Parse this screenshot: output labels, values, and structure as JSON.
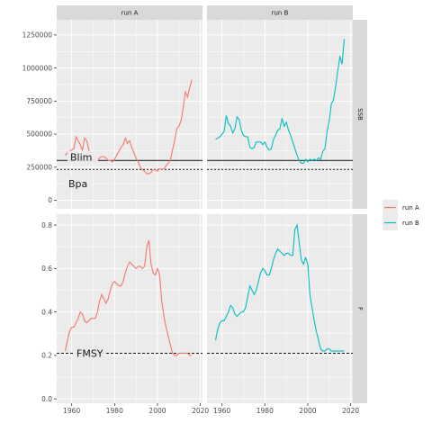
{
  "chart_data": {
    "type": "line",
    "facets": {
      "columns": [
        "run A",
        "run B"
      ],
      "rows": [
        "SSB",
        "F"
      ]
    },
    "x": {
      "ticks": [
        1960,
        1980,
        2000,
        2020
      ],
      "tick_labels": [
        "1960",
        "1980",
        "2000",
        "2020"
      ],
      "range": [
        1953,
        2021
      ]
    },
    "y_ssb": {
      "ticks": [
        0,
        250000,
        500000,
        750000,
        1000000,
        1250000
      ],
      "tick_labels": [
        "0",
        "250000",
        "500000",
        "750000",
        "1000000",
        "1250000"
      ],
      "range": [
        -65000,
        1365000
      ]
    },
    "y_f": {
      "ticks": [
        0.0,
        0.2,
        0.4,
        0.6,
        0.8
      ],
      "tick_labels": [
        "0.0",
        "0.2",
        "0.4",
        "0.6",
        "0.8"
      ],
      "range": [
        -0.02,
        0.85
      ]
    },
    "ref_lines": {
      "Blim": 300000,
      "Bpa": 232000,
      "FMSY": 0.21
    },
    "ref_labels": {
      "blim": "Blim",
      "bpa": "Bpa",
      "fmsy": "FMSY"
    },
    "legend": {
      "position": "right",
      "items": [
        "run A",
        "run B"
      ]
    },
    "colors": {
      "run A": "#F8766D",
      "run B": "#00BFC4",
      "panel_bg": "#EBEBEB",
      "strip_bg": "#D9D9D9",
      "grid": "#FFFFFF",
      "ref_line": "#404040"
    },
    "series": [
      {
        "name": "run A",
        "ssb": {
          "years": [
            1957,
            1958,
            1959,
            1960,
            1961,
            1962,
            1963,
            1964,
            1965,
            1966,
            1967,
            1968,
            1969,
            1970,
            1971,
            1972,
            1973,
            1974,
            1975,
            1976,
            1977,
            1978,
            1979,
            1980,
            1981,
            1982,
            1983,
            1984,
            1985,
            1986,
            1987,
            1988,
            1989,
            1990,
            1991,
            1992,
            1993,
            1994,
            1995,
            1996,
            1997,
            1998,
            1999,
            2000,
            2001,
            2002,
            2003,
            2004,
            2005,
            2006,
            2007,
            2008,
            2009,
            2010,
            2011,
            2012,
            2013,
            2014,
            2015,
            2016
          ],
          "values": [
            340000,
            360000,
            370000,
            380000,
            390000,
            480000,
            450000,
            420000,
            380000,
            470000,
            450000,
            380000,
            340000,
            300000,
            290000,
            300000,
            320000,
            330000,
            330000,
            320000,
            300000,
            300000,
            290000,
            310000,
            340000,
            370000,
            400000,
            420000,
            470000,
            430000,
            450000,
            400000,
            360000,
            320000,
            290000,
            250000,
            230000,
            220000,
            200000,
            200000,
            210000,
            230000,
            230000,
            220000,
            240000,
            230000,
            240000,
            260000,
            280000,
            300000,
            380000,
            450000,
            540000,
            560000,
            600000,
            700000,
            820000,
            780000,
            850000,
            910000
          ]
        },
        "f": {
          "years": [
            1957,
            1958,
            1959,
            1960,
            1961,
            1962,
            1963,
            1964,
            1965,
            1966,
            1967,
            1968,
            1969,
            1970,
            1971,
            1972,
            1973,
            1974,
            1975,
            1976,
            1977,
            1978,
            1979,
            1980,
            1981,
            1982,
            1983,
            1984,
            1985,
            1986,
            1987,
            1988,
            1989,
            1990,
            1991,
            1992,
            1993,
            1994,
            1995,
            1996,
            1997,
            1998,
            1999,
            2000,
            2001,
            2002,
            2003,
            2004,
            2005,
            2006,
            2007,
            2008,
            2009,
            2010,
            2011,
            2012,
            2013,
            2014,
            2015,
            2016
          ],
          "values": [
            0.22,
            0.27,
            0.31,
            0.33,
            0.33,
            0.35,
            0.37,
            0.4,
            0.39,
            0.36,
            0.35,
            0.36,
            0.37,
            0.37,
            0.37,
            0.4,
            0.45,
            0.48,
            0.46,
            0.44,
            0.46,
            0.5,
            0.53,
            0.54,
            0.53,
            0.52,
            0.52,
            0.54,
            0.58,
            0.61,
            0.63,
            0.62,
            0.61,
            0.6,
            0.61,
            0.61,
            0.6,
            0.61,
            0.7,
            0.73,
            0.62,
            0.58,
            0.57,
            0.6,
            0.57,
            0.45,
            0.38,
            0.33,
            0.29,
            0.25,
            0.21,
            0.2,
            0.2,
            0.21,
            0.21,
            0.21,
            0.21,
            0.21,
            0.2,
            0.2
          ]
        }
      },
      {
        "name": "run B",
        "ssb": {
          "years": [
            1957,
            1958,
            1959,
            1960,
            1961,
            1962,
            1963,
            1964,
            1965,
            1966,
            1967,
            1968,
            1969,
            1970,
            1971,
            1972,
            1973,
            1974,
            1975,
            1976,
            1977,
            1978,
            1979,
            1980,
            1981,
            1982,
            1983,
            1984,
            1985,
            1986,
            1987,
            1988,
            1989,
            1990,
            1991,
            1992,
            1993,
            1994,
            1995,
            1996,
            1997,
            1998,
            1999,
            2000,
            2001,
            2002,
            2003,
            2004,
            2005,
            2006,
            2007,
            2008,
            2009,
            2010,
            2011,
            2012,
            2013,
            2014,
            2015,
            2016,
            2017
          ],
          "values": [
            460000,
            470000,
            480000,
            500000,
            520000,
            640000,
            580000,
            560000,
            510000,
            540000,
            630000,
            610000,
            530000,
            490000,
            480000,
            480000,
            400000,
            390000,
            400000,
            440000,
            440000,
            440000,
            420000,
            440000,
            400000,
            380000,
            390000,
            460000,
            490000,
            530000,
            540000,
            620000,
            560000,
            590000,
            530000,
            490000,
            440000,
            390000,
            340000,
            300000,
            280000,
            280000,
            310000,
            290000,
            310000,
            300000,
            310000,
            300000,
            320000,
            310000,
            370000,
            390000,
            520000,
            600000,
            730000,
            760000,
            860000,
            980000,
            1090000,
            1030000,
            1220000
          ]
        },
        "f": {
          "years": [
            1957,
            1958,
            1959,
            1960,
            1961,
            1962,
            1963,
            1964,
            1965,
            1966,
            1967,
            1968,
            1969,
            1970,
            1971,
            1972,
            1973,
            1974,
            1975,
            1976,
            1977,
            1978,
            1979,
            1980,
            1981,
            1982,
            1983,
            1984,
            1985,
            1986,
            1987,
            1988,
            1989,
            1990,
            1991,
            1992,
            1993,
            1994,
            1995,
            1996,
            1997,
            1998,
            1999,
            2000,
            2001,
            2002,
            2003,
            2004,
            2005,
            2006,
            2007,
            2008,
            2009,
            2010,
            2011,
            2012,
            2013,
            2014,
            2015,
            2016,
            2017
          ],
          "values": [
            0.27,
            0.32,
            0.35,
            0.36,
            0.36,
            0.38,
            0.4,
            0.43,
            0.42,
            0.39,
            0.38,
            0.39,
            0.4,
            0.4,
            0.42,
            0.47,
            0.52,
            0.5,
            0.48,
            0.5,
            0.54,
            0.58,
            0.6,
            0.59,
            0.57,
            0.57,
            0.6,
            0.64,
            0.67,
            0.69,
            0.68,
            0.67,
            0.66,
            0.67,
            0.67,
            0.66,
            0.66,
            0.78,
            0.8,
            0.72,
            0.64,
            0.62,
            0.65,
            0.62,
            0.48,
            0.42,
            0.36,
            0.31,
            0.27,
            0.23,
            0.22,
            0.22,
            0.23,
            0.23,
            0.22,
            0.22,
            0.22,
            0.22,
            0.22,
            0.22,
            0.22
          ]
        }
      }
    ]
  }
}
